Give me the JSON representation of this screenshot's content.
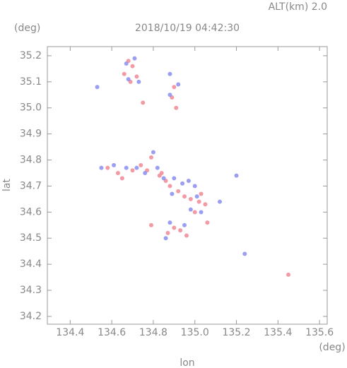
{
  "chart_data": {
    "type": "scatter",
    "title": "2018/10/19 04:42:30",
    "subtitle": "ALT(km) 2.0",
    "y_unit": "(deg)",
    "x_unit": "(deg)",
    "xlabel": "lon",
    "ylabel": "lat",
    "xlim": [
      134.29,
      135.637
    ],
    "ylim": [
      34.17,
      35.235
    ],
    "xticks": [
      134.4,
      134.6,
      134.8,
      {
        "value": 135,
        "label": "135.0"
      },
      135.2,
      135.4,
      135.6
    ],
    "yticks": [
      34.2,
      34.3,
      34.4,
      34.5,
      34.6,
      34.7,
      34.8,
      34.9,
      {
        "value": 35,
        "label": "35.0"
      },
      35.1,
      35.2
    ],
    "series": [
      {
        "color": "#f08a94",
        "x": [
          134.68,
          134.7,
          134.66,
          134.72,
          134.69,
          134.75,
          134.9,
          134.89,
          134.91,
          134.58,
          134.63,
          134.65,
          134.7,
          134.74,
          134.77,
          134.79,
          134.83,
          134.86,
          134.88,
          134.92,
          134.95,
          134.98,
          135.02,
          135.05,
          135.0,
          135.06,
          134.87,
          134.9,
          134.93,
          134.96,
          134.79,
          135.03,
          134.84,
          135.45
        ],
        "y": [
          35.18,
          35.16,
          35.13,
          35.12,
          35.1,
          35.02,
          35.08,
          35.04,
          35.0,
          34.77,
          34.75,
          34.73,
          34.76,
          34.78,
          34.76,
          34.81,
          34.74,
          34.72,
          34.7,
          34.68,
          34.66,
          34.65,
          34.64,
          34.63,
          34.6,
          34.56,
          34.52,
          34.54,
          34.53,
          34.51,
          34.55,
          34.67,
          34.75,
          34.36
        ]
      },
      {
        "color": "#8a8ef0",
        "x": [
          134.67,
          134.71,
          134.73,
          134.68,
          134.88,
          134.92,
          134.88,
          134.55,
          134.61,
          134.67,
          134.72,
          134.76,
          134.8,
          134.82,
          134.85,
          134.9,
          134.89,
          134.94,
          134.97,
          135.0,
          135.01,
          134.98,
          135.03,
          135.12,
          134.86,
          134.88,
          134.95,
          134.53,
          135.2,
          135.24
        ],
        "y": [
          35.17,
          35.19,
          35.1,
          35.11,
          35.13,
          35.09,
          35.05,
          34.77,
          34.78,
          34.77,
          34.77,
          34.75,
          34.83,
          34.77,
          34.73,
          34.73,
          34.67,
          34.71,
          34.72,
          34.7,
          34.66,
          34.61,
          34.6,
          34.64,
          34.5,
          34.56,
          34.55,
          35.08,
          34.74,
          34.44
        ]
      }
    ]
  }
}
